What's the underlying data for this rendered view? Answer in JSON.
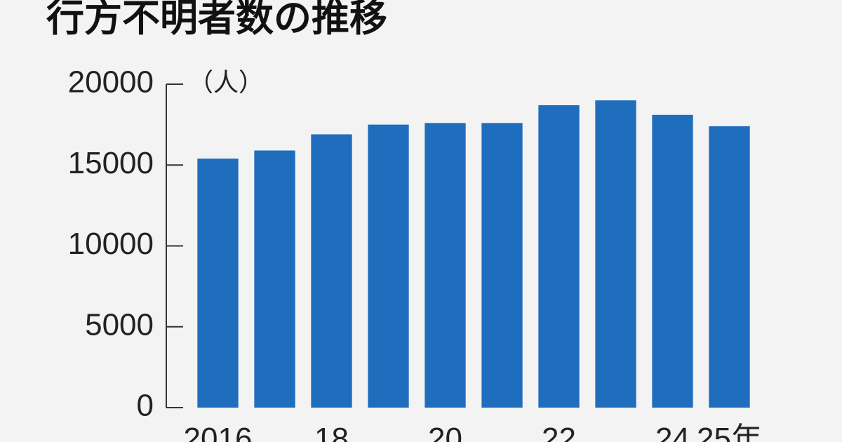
{
  "chart_data": {
    "type": "bar",
    "title": "行方不明者数の推移",
    "y_label": "（人）",
    "categories": [
      "2016",
      null,
      "18",
      null,
      "20",
      null,
      "22",
      null,
      "24",
      "25年"
    ],
    "values": [
      15400,
      15900,
      16900,
      17500,
      17600,
      17600,
      18700,
      19000,
      18100,
      17400
    ],
    "color": "#1f6dbd",
    "ylim": [
      0,
      20000
    ],
    "yticks": [
      0,
      5000,
      10000,
      15000,
      20000
    ],
    "grid": false
  }
}
